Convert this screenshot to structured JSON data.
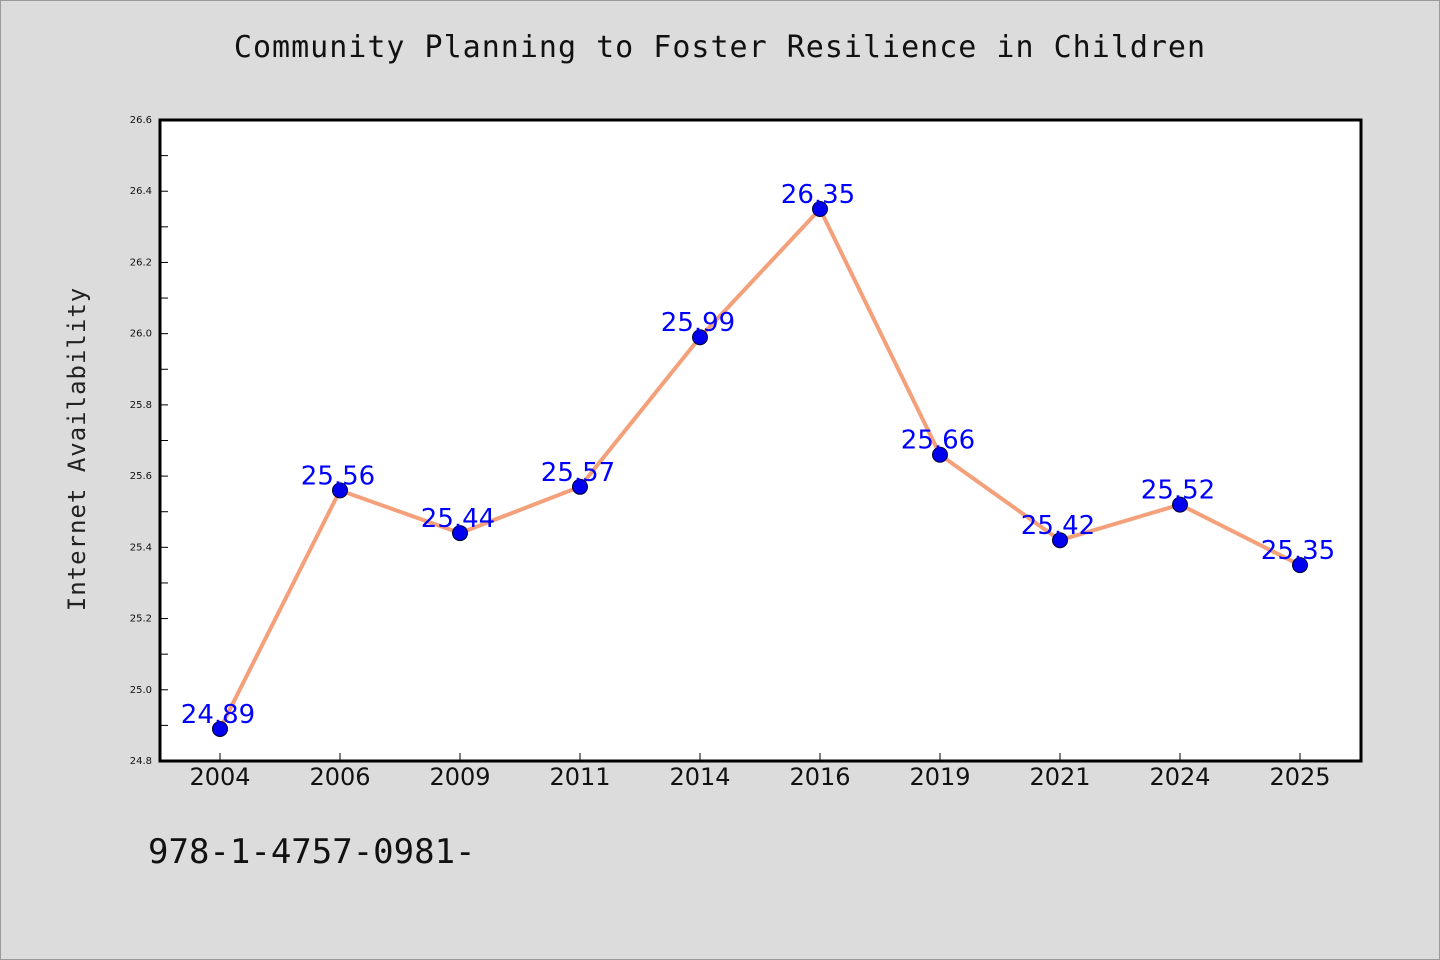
{
  "chart_data": {
    "type": "line",
    "title": "Community Planning to Foster Resilience in Children",
    "xlabel": "",
    "ylabel": "Internet Availability",
    "categories": [
      "2004",
      "2006",
      "2009",
      "2011",
      "2014",
      "2016",
      "2019",
      "2021",
      "2024",
      "2025"
    ],
    "series": [
      {
        "values": [
          24.89,
          25.56,
          25.44,
          25.57,
          25.99,
          26.35,
          25.66,
          25.42,
          25.52,
          25.35
        ]
      }
    ],
    "data_labels": [
      "24.89",
      "25.56",
      "25.44",
      "25.57",
      "25.99",
      "26.35",
      "25.66",
      "25.42",
      "25.52",
      "25.35"
    ],
    "ylim": [
      24.8,
      26.6
    ],
    "yticks": [
      "24.8",
      "25.0",
      "25.2",
      "25.4",
      "25.6",
      "25.8",
      "26.0",
      "26.2",
      "26.4",
      "26.6"
    ],
    "grid": false,
    "line_color": "#f4a07a",
    "marker_color": "#0000ee",
    "label_color": "#0000ff"
  },
  "footer": {
    "code": "978-1-4757-0981-"
  }
}
